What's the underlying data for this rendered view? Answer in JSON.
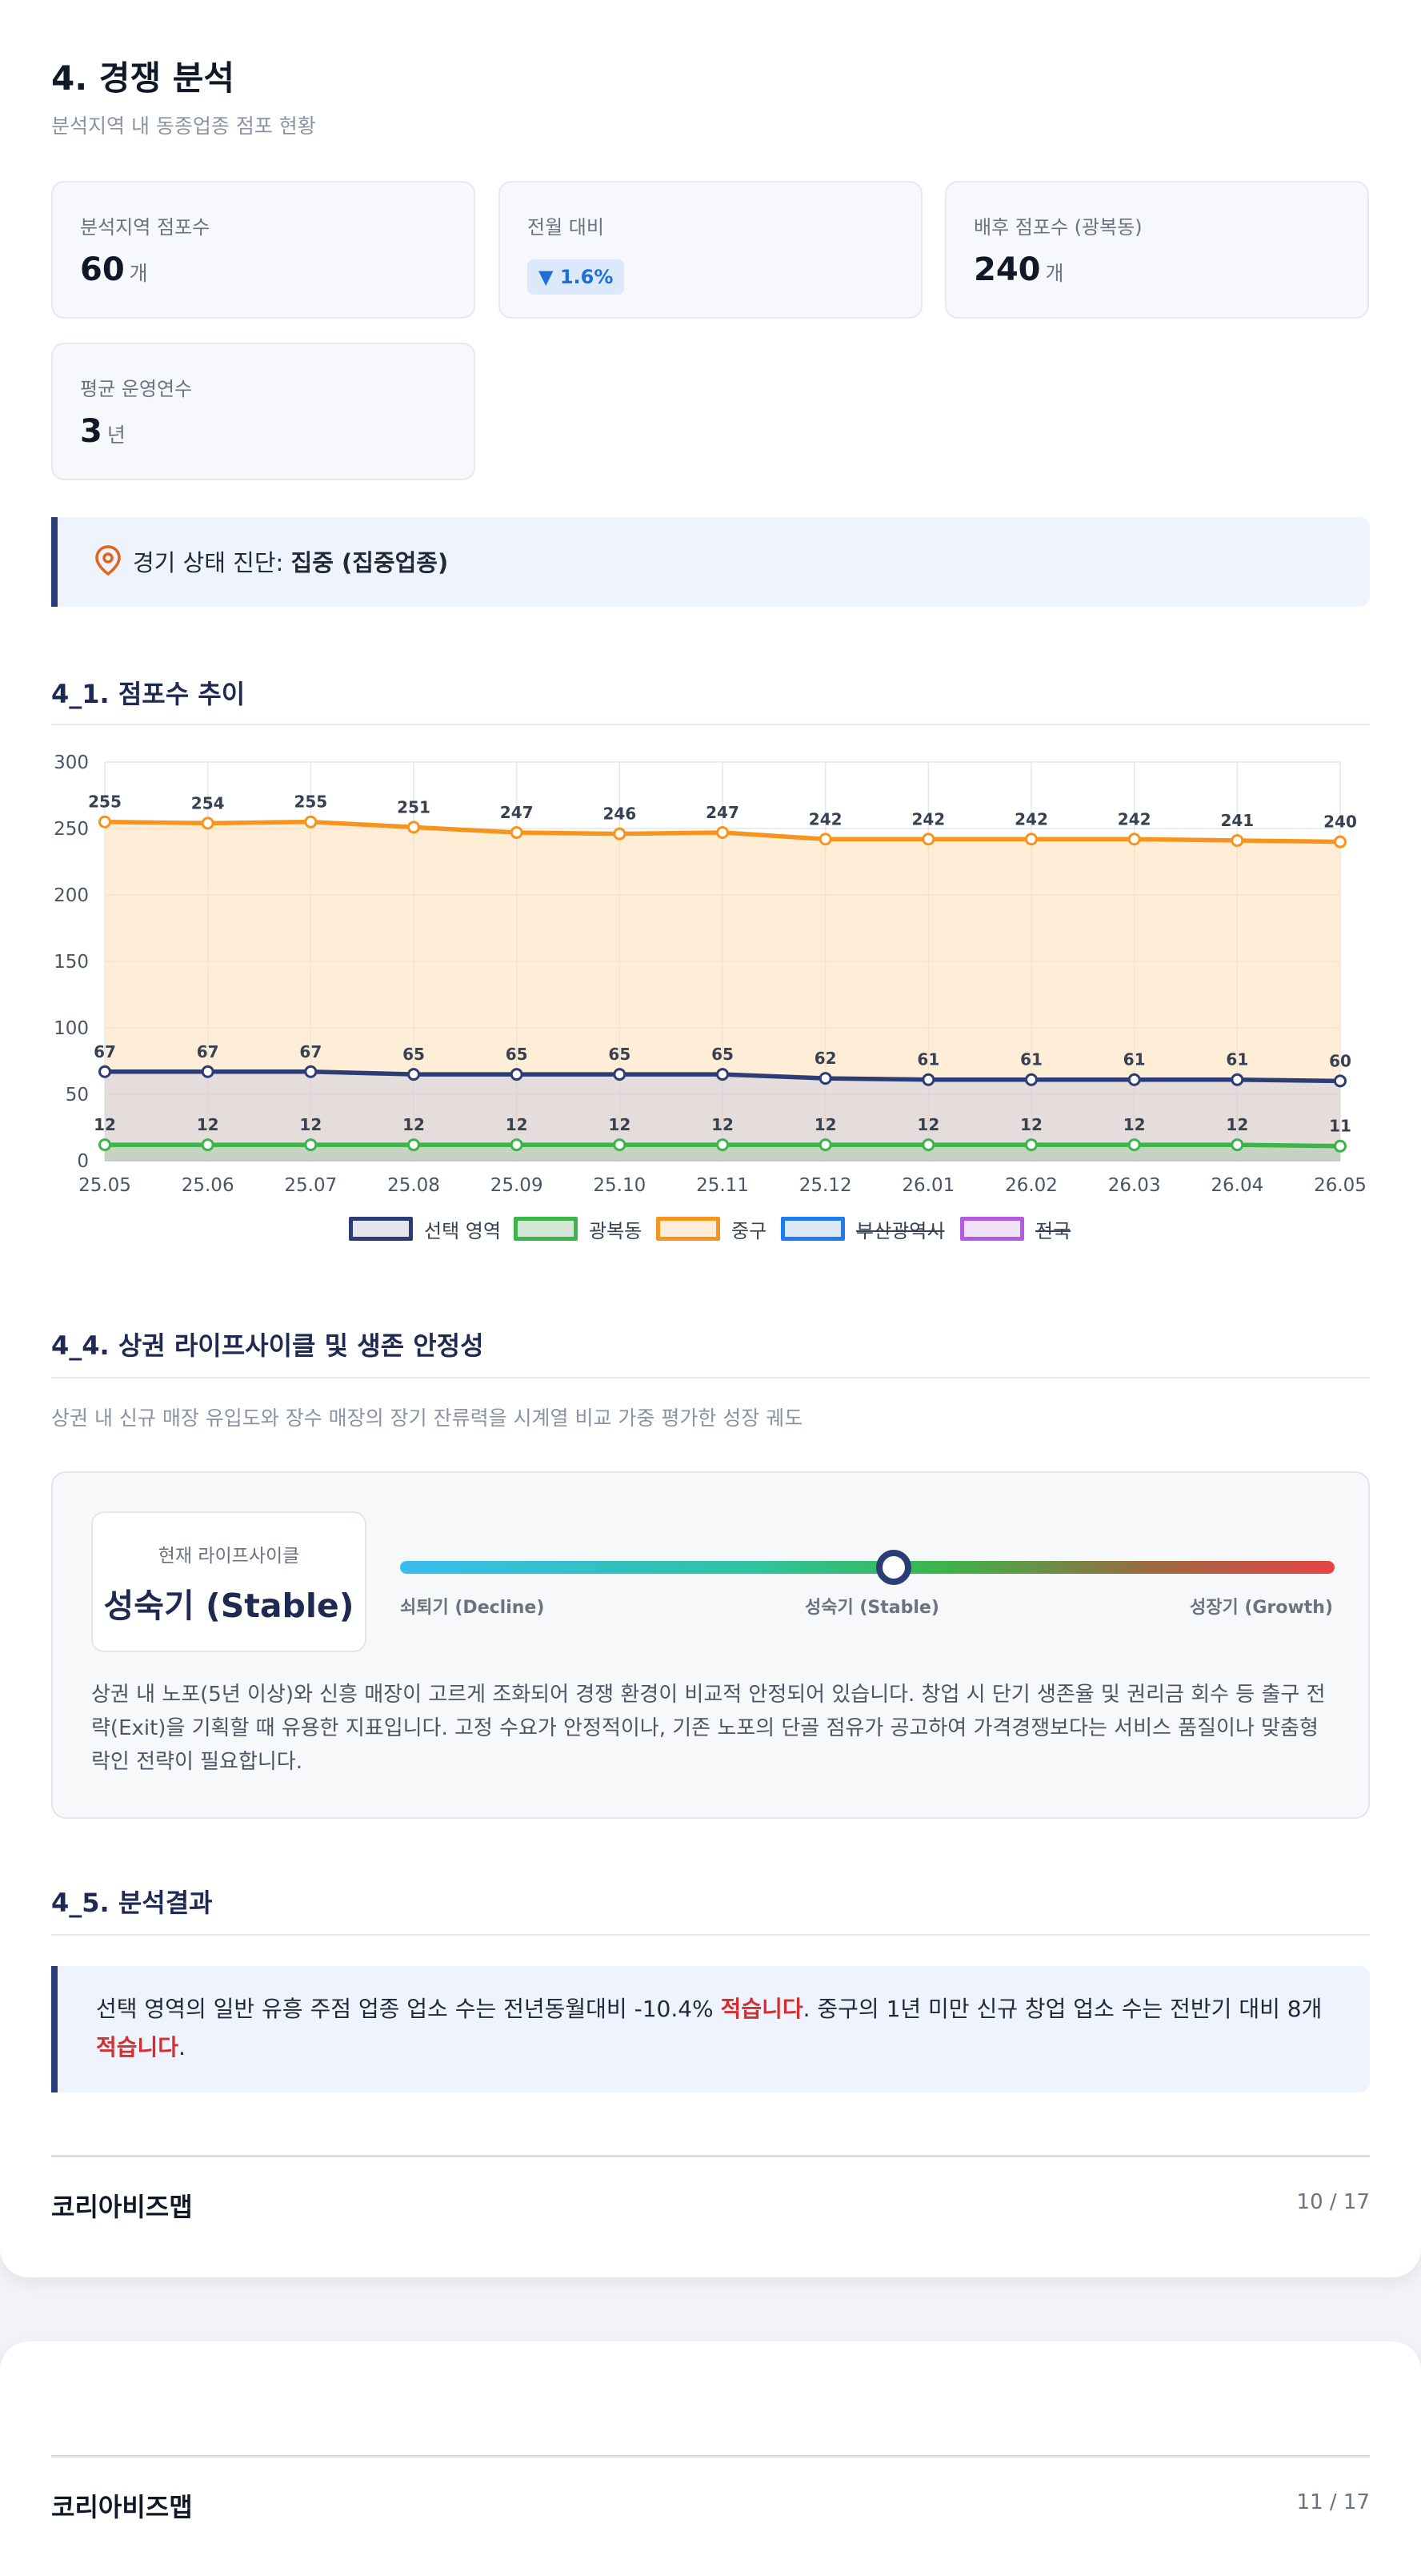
{
  "section": {
    "title": "4. 경쟁 분석",
    "subtitle": "분석지역 내 동종업종 점포 현황"
  },
  "cards": {
    "store_count": {
      "label": "분석지역 점포수",
      "value": "60",
      "unit": "개"
    },
    "mom": {
      "label": "전월 대비",
      "value": "▼ 1.6%"
    },
    "hinterland": {
      "label": "배후 점포수 (광복동)",
      "value": "240",
      "unit": "개"
    },
    "avg_years": {
      "label": "평균 운영연수",
      "value": "3",
      "unit": "년"
    }
  },
  "diagnosis": {
    "prefix": "경기 상태 진단: ",
    "value": "집중 (집중업종)",
    "icon": "location-pin-icon"
  },
  "trend": {
    "heading": "4_1. 점포수 추이"
  },
  "chart_data": {
    "type": "line",
    "title": "",
    "xlabel": "",
    "ylabel": "",
    "x": [
      "25.05",
      "25.06",
      "25.07",
      "25.08",
      "25.09",
      "25.10",
      "25.11",
      "25.12",
      "26.01",
      "26.02",
      "26.03",
      "26.04",
      "26.05"
    ],
    "ylim": [
      0,
      300
    ],
    "yticks": [
      0,
      50,
      100,
      150,
      200,
      250,
      300
    ],
    "grid": true,
    "legend_position": "bottom",
    "series": [
      {
        "name": "선택 영역",
        "color": "#2c3c74",
        "fill": "rgba(200,200,225,0.45)",
        "values": [
          67,
          67,
          67,
          65,
          65,
          65,
          65,
          62,
          61,
          61,
          61,
          61,
          60
        ],
        "hidden": false
      },
      {
        "name": "광복동",
        "color": "#3ab54a",
        "fill": "rgba(160,200,160,0.45)",
        "values": [
          12,
          12,
          12,
          12,
          12,
          12,
          12,
          12,
          12,
          12,
          12,
          12,
          11
        ],
        "hidden": false
      },
      {
        "name": "중구",
        "color": "#f7941d",
        "fill": "rgba(253,224,184,0.55)",
        "values": [
          255,
          254,
          255,
          251,
          247,
          246,
          247,
          242,
          242,
          242,
          242,
          241,
          240
        ],
        "hidden": false
      },
      {
        "name": "부산광역시",
        "color": "#1d7cf2",
        "hidden": true
      },
      {
        "name": "전국",
        "color": "#b45ae0",
        "hidden": true
      }
    ]
  },
  "lifecycle": {
    "heading": "4_4. 상권 라이프사이클 및 생존 안정성",
    "description": "상권 내 신규 매장 유입도와 장수 매장의 장기 잔류력을 시계열 비교 가중 평가한 성장 궤도",
    "current_label": "현재 라이프사이클",
    "current_value": "성숙기 (Stable)",
    "position": 0.5,
    "scale": {
      "left": "쇠퇴기 (Decline)",
      "middle": "성숙기 (Stable)",
      "right": "성장기 (Growth)"
    },
    "body": "상권 내 노포(5년 이상)와 신흥 매장이 고르게 조화되어 경쟁 환경이 비교적 안정되어 있습니다. 창업 시 단기 생존율 및 권리금 회수 등 출구 전략(Exit)을 기획할 때 유용한 지표입니다. 고정 수요가 안정적이나, 기존 노포의 단골 점유가 공고하여 가격경쟁보다는 서비스 품질이나 맞춤형 락인 전략이 필요합니다."
  },
  "result": {
    "heading": "4_5. 분석결과",
    "part1": "선택 영역의 일반 유흥 주점 업종 업소 수는 전년동월대비 -10.4% ",
    "hl1": "적습니다",
    "part2": ". 중구의 1년 미만 신규 창업 업소 수는 전반기 대비 8개 ",
    "hl2": "적습니다",
    "part3": "."
  },
  "footer1": {
    "brand": "코리아비즈맵",
    "page": "10 / 17"
  },
  "footer2": {
    "brand": "코리아비즈맵",
    "page": "11 / 17"
  }
}
